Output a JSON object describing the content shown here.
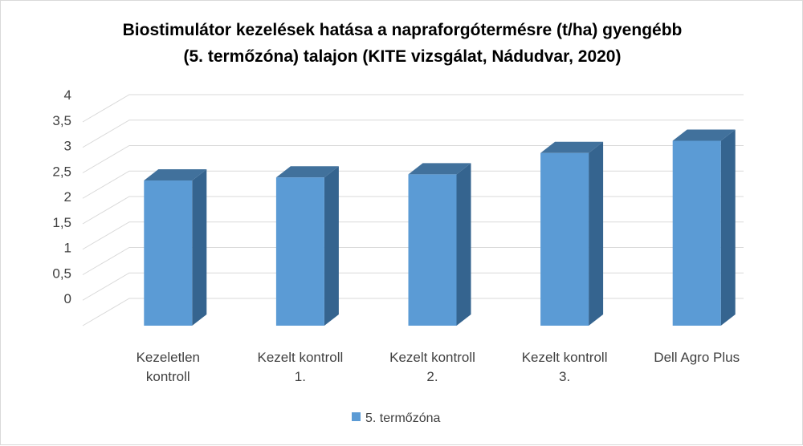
{
  "chart_data": {
    "type": "bar",
    "title_lines": [
      "Biostimulátor kezelések hatása a napraforgótermésre (t/ha) gyengébb",
      "(5. termőzóna) talajon (KITE vizsgálat, Nádudvar, 2020)"
    ],
    "categories": [
      [
        "Kezeletlen",
        "kontroll"
      ],
      [
        "Kezelt kontroll",
        "1."
      ],
      [
        "Kezelt kontroll",
        "2."
      ],
      [
        "Kezelt kontroll",
        "3."
      ],
      [
        "Dell Agro Plus"
      ]
    ],
    "series": [
      {
        "name": "5. termőzóna",
        "values": [
          2.85,
          2.91,
          2.97,
          3.39,
          3.63
        ]
      }
    ],
    "ylim": [
      0,
      4
    ],
    "yticks": [
      "0",
      "0,5",
      "1",
      "1,5",
      "2",
      "2,5",
      "3",
      "3,5",
      "4"
    ],
    "grid": true,
    "legend_position": "bottom",
    "colors": {
      "bar_front": "#5b9bd5",
      "bar_side": "#35648f",
      "bar_top": "#41719c",
      "grid": "#d9d9d9"
    }
  }
}
